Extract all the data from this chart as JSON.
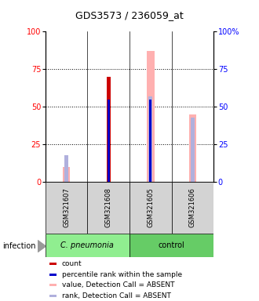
{
  "title": "GDS3573 / 236059_at",
  "samples": [
    "GSM321607",
    "GSM321608",
    "GSM321605",
    "GSM321606"
  ],
  "ylim": [
    0,
    100
  ],
  "yticks": [
    0,
    25,
    50,
    75,
    100
  ],
  "bar_count_color": "#cc0000",
  "bar_rank_color": "#0000cc",
  "bar_absent_value_color": "#ffb0b0",
  "bar_absent_rank_color": "#b0b0dd",
  "count_values": [
    0,
    70,
    0,
    0
  ],
  "rank_values": [
    0,
    55,
    55,
    0
  ],
  "absent_value_values": [
    10,
    0,
    87,
    45
  ],
  "absent_rank_values": [
    18,
    0,
    57,
    43
  ],
  "infection_label": "infection",
  "cpneumonia_color": "#90ee90",
  "control_color": "#66cc66",
  "sample_box_color": "#d3d3d3",
  "legend_items": [
    {
      "color": "#cc0000",
      "label": "count"
    },
    {
      "color": "#0000cc",
      "label": "percentile rank within the sample"
    },
    {
      "color": "#ffb0b0",
      "label": "value, Detection Call = ABSENT"
    },
    {
      "color": "#b0b0dd",
      "label": "rank, Detection Call = ABSENT"
    }
  ]
}
